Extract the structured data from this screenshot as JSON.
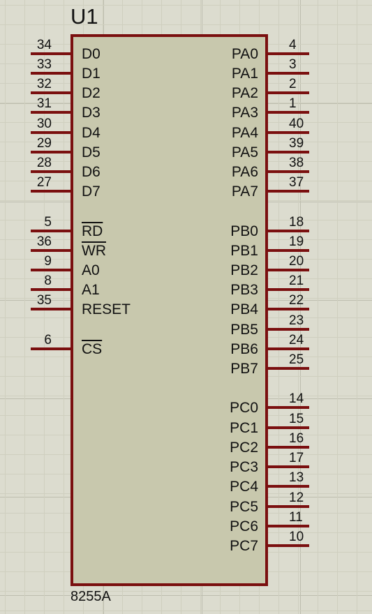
{
  "component": {
    "reference": "U1",
    "part": "8255A"
  },
  "pins_left": [
    {
      "name": "D0",
      "number": "34",
      "overbar": false
    },
    {
      "name": "D1",
      "number": "33",
      "overbar": false
    },
    {
      "name": "D2",
      "number": "32",
      "overbar": false
    },
    {
      "name": "D3",
      "number": "31",
      "overbar": false
    },
    {
      "name": "D4",
      "number": "30",
      "overbar": false
    },
    {
      "name": "D5",
      "number": "29",
      "overbar": false
    },
    {
      "name": "D6",
      "number": "28",
      "overbar": false
    },
    {
      "name": "D7",
      "number": "27",
      "overbar": false
    },
    {
      "name": "RD",
      "number": "5",
      "overbar": true
    },
    {
      "name": "WR",
      "number": "36",
      "overbar": true
    },
    {
      "name": "A0",
      "number": "9",
      "overbar": false
    },
    {
      "name": "A1",
      "number": "8",
      "overbar": false
    },
    {
      "name": "RESET",
      "number": "35",
      "overbar": false
    },
    {
      "name": "CS",
      "number": "6",
      "overbar": true
    }
  ],
  "pins_right": [
    {
      "name": "PA0",
      "number": "4"
    },
    {
      "name": "PA1",
      "number": "3"
    },
    {
      "name": "PA2",
      "number": "2"
    },
    {
      "name": "PA3",
      "number": "1"
    },
    {
      "name": "PA4",
      "number": "40"
    },
    {
      "name": "PA5",
      "number": "39"
    },
    {
      "name": "PA6",
      "number": "38"
    },
    {
      "name": "PA7",
      "number": "37"
    },
    {
      "name": "PB0",
      "number": "18"
    },
    {
      "name": "PB1",
      "number": "19"
    },
    {
      "name": "PB2",
      "number": "20"
    },
    {
      "name": "PB3",
      "number": "21"
    },
    {
      "name": "PB4",
      "number": "22"
    },
    {
      "name": "PB5",
      "number": "23"
    },
    {
      "name": "PB6",
      "number": "24"
    },
    {
      "name": "PB7",
      "number": "25"
    },
    {
      "name": "PC0",
      "number": "14"
    },
    {
      "name": "PC1",
      "number": "15"
    },
    {
      "name": "PC2",
      "number": "16"
    },
    {
      "name": "PC3",
      "number": "17"
    },
    {
      "name": "PC4",
      "number": "13"
    },
    {
      "name": "PC5",
      "number": "12"
    },
    {
      "name": "PC6",
      "number": "11"
    },
    {
      "name": "PC7",
      "number": "10"
    }
  ],
  "colors": {
    "background": "#dcdccf",
    "grid": "#cfcfbf",
    "component_body": "#c8c8ad",
    "wire": "#7a0f0f"
  }
}
